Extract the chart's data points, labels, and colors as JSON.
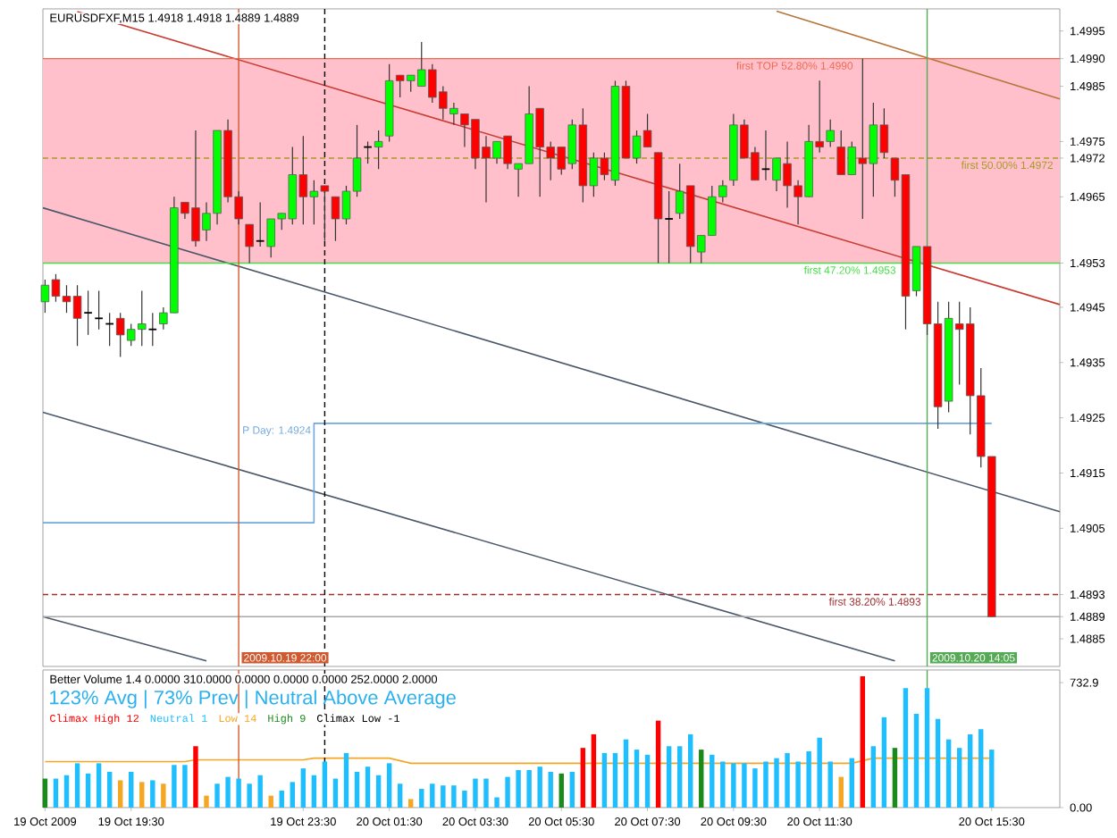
{
  "chart_data": [
    {
      "type": "candlestick",
      "title": "EURUSDFXF,M15 1.4918 1.4918 1.4889 1.4889",
      "x": [
        "2009-10-19T17:30",
        "2009-10-19T17:45",
        "2009-10-19T18:00",
        "2009-10-19T18:15",
        "2009-10-19T18:30",
        "2009-10-19T18:45",
        "2009-10-19T19:00",
        "2009-10-19T19:15",
        "2009-10-19T19:30",
        "2009-10-19T19:45",
        "2009-10-19T20:00",
        "2009-10-19T20:15",
        "2009-10-19T20:30",
        "2009-10-19T20:45",
        "2009-10-19T21:00",
        "2009-10-19T21:15",
        "2009-10-19T21:30",
        "2009-10-19T21:45",
        "2009-10-19T22:00",
        "2009-10-19T22:15",
        "2009-10-19T22:30",
        "2009-10-19T22:45",
        "2009-10-19T23:00",
        "2009-10-19T23:15",
        "2009-10-19T23:30",
        "2009-10-19T23:45",
        "2009-10-20T00:00",
        "2009-10-20T00:15",
        "2009-10-20T00:30",
        "2009-10-20T00:45",
        "2009-10-20T01:00",
        "2009-10-20T01:15",
        "2009-10-20T01:30",
        "2009-10-20T01:45",
        "2009-10-20T02:00",
        "2009-10-20T02:15",
        "2009-10-20T02:30",
        "2009-10-20T02:45",
        "2009-10-20T03:00",
        "2009-10-20T03:15",
        "2009-10-20T03:30",
        "2009-10-20T03:45",
        "2009-10-20T04:00",
        "2009-10-20T04:15",
        "2009-10-20T04:30",
        "2009-10-20T04:45",
        "2009-10-20T05:00",
        "2009-10-20T05:15",
        "2009-10-20T05:30",
        "2009-10-20T05:45",
        "2009-10-20T06:00",
        "2009-10-20T06:15",
        "2009-10-20T06:30",
        "2009-10-20T06:45",
        "2009-10-20T07:00",
        "2009-10-20T07:15",
        "2009-10-20T07:30",
        "2009-10-20T07:45",
        "2009-10-20T08:00",
        "2009-10-20T08:15",
        "2009-10-20T08:30",
        "2009-10-20T08:45",
        "2009-10-20T09:00",
        "2009-10-20T09:15",
        "2009-10-20T09:30",
        "2009-10-20T09:45",
        "2009-10-20T10:00",
        "2009-10-20T10:15",
        "2009-10-20T10:30",
        "2009-10-20T10:45",
        "2009-10-20T11:00",
        "2009-10-20T11:15",
        "2009-10-20T11:30",
        "2009-10-20T11:45",
        "2009-10-20T12:00",
        "2009-10-20T12:15",
        "2009-10-20T12:30",
        "2009-10-20T12:45",
        "2009-10-20T13:00",
        "2009-10-20T13:15",
        "2009-10-20T13:30",
        "2009-10-20T13:45",
        "2009-10-20T14:00",
        "2009-10-20T14:15",
        "2009-10-20T14:30",
        "2009-10-20T14:45",
        "2009-10-20T15:00",
        "2009-10-20T15:15",
        "2009-10-20T15:30"
      ],
      "ohlc": [
        [
          1.4946,
          1.495,
          1.4944,
          1.4949
        ],
        [
          1.495,
          1.4951,
          1.4946,
          1.4947
        ],
        [
          1.4947,
          1.4949,
          1.4944,
          1.4946
        ],
        [
          1.4947,
          1.4949,
          1.4938,
          1.4943
        ],
        [
          1.4944,
          1.4948,
          1.494,
          1.4944
        ],
        [
          1.4943,
          1.4948,
          1.4941,
          1.4943
        ],
        [
          1.4942,
          1.4944,
          1.4938,
          1.4942
        ],
        [
          1.4943,
          1.4944,
          1.4936,
          1.494
        ],
        [
          1.4939,
          1.4942,
          1.4938,
          1.4941
        ],
        [
          1.4941,
          1.4948,
          1.4938,
          1.4942
        ],
        [
          1.4941,
          1.4944,
          1.4938,
          1.4941
        ],
        [
          1.4942,
          1.4945,
          1.4941,
          1.4944
        ],
        [
          1.4944,
          1.4965,
          1.4944,
          1.4963
        ],
        [
          1.4964,
          1.4964,
          1.4961,
          1.4962
        ],
        [
          1.4963,
          1.4977,
          1.4956,
          1.4957
        ],
        [
          1.4959,
          1.4964,
          1.4957,
          1.4962
        ],
        [
          1.4962,
          1.4977,
          1.496,
          1.4977
        ],
        [
          1.4977,
          1.4979,
          1.4964,
          1.4965
        ],
        [
          1.4965,
          1.4966,
          1.496,
          1.4961
        ],
        [
          1.496,
          1.496,
          1.4953,
          1.4956
        ],
        [
          1.4957,
          1.4964,
          1.4956,
          1.4957
        ],
        [
          1.4956,
          1.4961,
          1.4954,
          1.4961
        ],
        [
          1.4961,
          1.4962,
          1.4959,
          1.4962
        ],
        [
          1.4961,
          1.4974,
          1.496,
          1.4969
        ],
        [
          1.4969,
          1.4976,
          1.496,
          1.4965
        ],
        [
          1.4965,
          1.4968,
          1.496,
          1.4966
        ],
        [
          1.4967,
          1.4967,
          1.4957,
          1.4966
        ],
        [
          1.4965,
          1.4965,
          1.4957,
          1.4961
        ],
        [
          1.4961,
          1.4967,
          1.496,
          1.4966
        ],
        [
          1.4966,
          1.4978,
          1.4965,
          1.4972
        ],
        [
          1.4974,
          1.4975,
          1.4971,
          1.4974
        ],
        [
          1.4974,
          1.4977,
          1.497,
          1.4975
        ],
        [
          1.4976,
          1.4989,
          1.4975,
          1.4986
        ],
        [
          1.4987,
          1.4987,
          1.4983,
          1.4986
        ],
        [
          1.4986,
          1.4987,
          1.4984,
          1.4987
        ],
        [
          1.4985,
          1.4993,
          1.4985,
          1.4988
        ],
        [
          1.4988,
          1.4989,
          1.4982,
          1.4983
        ],
        [
          1.4984,
          1.4985,
          1.4979,
          1.4981
        ],
        [
          1.498,
          1.4982,
          1.4978,
          1.4981
        ],
        [
          1.498,
          1.498,
          1.4974,
          1.4978
        ],
        [
          1.4979,
          1.4979,
          1.497,
          1.4972
        ],
        [
          1.4974,
          1.4976,
          1.4964,
          1.4972
        ],
        [
          1.4972,
          1.4975,
          1.4971,
          1.4975
        ],
        [
          1.4976,
          1.4976,
          1.497,
          1.4971
        ],
        [
          1.497,
          1.4971,
          1.4965,
          1.4971
        ],
        [
          1.4971,
          1.4985,
          1.4971,
          1.498
        ],
        [
          1.4981,
          1.4981,
          1.4965,
          1.4974
        ],
        [
          1.4974,
          1.4975,
          1.4968,
          1.4972
        ],
        [
          1.4974,
          1.4974,
          1.4969,
          1.497
        ],
        [
          1.4971,
          1.4979,
          1.497,
          1.4978
        ],
        [
          1.4978,
          1.4981,
          1.4964,
          1.4967
        ],
        [
          1.4967,
          1.4973,
          1.4965,
          1.4972
        ],
        [
          1.4972,
          1.4973,
          1.4968,
          1.4969
        ],
        [
          1.4968,
          1.4986,
          1.4967,
          1.4985
        ],
        [
          1.4985,
          1.4986,
          1.4972,
          1.4972
        ],
        [
          1.4972,
          1.4977,
          1.4971,
          1.4976
        ],
        [
          1.4977,
          1.498,
          1.4974,
          1.4974
        ],
        [
          1.4973,
          1.4973,
          1.4953,
          1.4961
        ],
        [
          1.4961,
          1.4966,
          1.4953,
          1.4961
        ],
        [
          1.4962,
          1.4971,
          1.4961,
          1.4966
        ],
        [
          1.4967,
          1.4967,
          1.4953,
          1.4956
        ],
        [
          1.4955,
          1.4958,
          1.4953,
          1.4958
        ],
        [
          1.4958,
          1.4967,
          1.4958,
          1.4965
        ],
        [
          1.4965,
          1.4968,
          1.4964,
          1.4967
        ],
        [
          1.4968,
          1.498,
          1.4967,
          1.4978
        ],
        [
          1.4978,
          1.4979,
          1.4972,
          1.4972
        ],
        [
          1.4973,
          1.4974,
          1.4968,
          1.4968
        ],
        [
          1.497,
          1.4977,
          1.4968,
          1.497
        ],
        [
          1.4968,
          1.4972,
          1.4966,
          1.4972
        ],
        [
          1.4971,
          1.4975,
          1.4963,
          1.4967
        ],
        [
          1.4967,
          1.4968,
          1.496,
          1.4965
        ],
        [
          1.4965,
          1.4978,
          1.4965,
          1.4975
        ],
        [
          1.4975,
          1.4986,
          1.4973,
          1.4974
        ],
        [
          1.4975,
          1.4979,
          1.4974,
          1.4977
        ],
        [
          1.4974,
          1.4977,
          1.4969,
          1.4969
        ],
        [
          1.4969,
          1.4975,
          1.4969,
          1.4974
        ],
        [
          1.4972,
          1.499,
          1.4961,
          1.4971
        ],
        [
          1.4971,
          1.4982,
          1.4965,
          1.4978
        ],
        [
          1.4978,
          1.4981,
          1.4972,
          1.4973
        ],
        [
          1.4972,
          1.4972,
          1.4965,
          1.4968
        ],
        [
          1.4969,
          1.4969,
          1.4941,
          1.4947
        ],
        [
          1.4948,
          1.4956,
          1.4947,
          1.4956
        ],
        [
          1.4956,
          1.4956,
          1.494,
          1.4942
        ],
        [
          1.4942,
          1.4946,
          1.4923,
          1.4927
        ],
        [
          1.4928,
          1.4946,
          1.4926,
          1.4943
        ],
        [
          1.4942,
          1.4946,
          1.4931,
          1.4941
        ],
        [
          1.4942,
          1.4945,
          1.4922,
          1.4929
        ],
        [
          1.4929,
          1.4934,
          1.4916,
          1.4918
        ],
        [
          1.4918,
          1.4918,
          1.4889,
          1.4889
        ]
      ],
      "colors": [
        "#00ff00",
        "#ff0000",
        "#ff0000",
        "#ff0000",
        "#000000",
        "#000000",
        "#000000",
        "#ff0000",
        "#00ff00",
        "#00ff00",
        "#000000",
        "#00ff00",
        "#00ff00",
        "#ff0000",
        "#ff0000",
        "#00ff00",
        "#00ff00",
        "#ff0000",
        "#ff0000",
        "#ff0000",
        "#000000",
        "#00ff00",
        "#00ff00",
        "#00ff00",
        "#ff0000",
        "#00ff00",
        "#ff0000",
        "#ff0000",
        "#00ff00",
        "#00ff00",
        "#000000",
        "#00ff00",
        "#00ff00",
        "#ff0000",
        "#00ff00",
        "#00ff00",
        "#ff0000",
        "#ff0000",
        "#00ff00",
        "#ff0000",
        "#ff0000",
        "#ff0000",
        "#00ff00",
        "#ff0000",
        "#00ff00",
        "#00ff00",
        "#ff0000",
        "#ff0000",
        "#ff0000",
        "#00ff00",
        "#ff0000",
        "#00ff00",
        "#ff0000",
        "#00ff00",
        "#ff0000",
        "#00ff00",
        "#ff0000",
        "#ff0000",
        "#000000",
        "#00ff00",
        "#ff0000",
        "#00ff00",
        "#00ff00",
        "#00ff00",
        "#00ff00",
        "#ff0000",
        "#ff0000",
        "#000000",
        "#00ff00",
        "#ff0000",
        "#ff0000",
        "#00ff00",
        "#ff0000",
        "#00ff00",
        "#ff0000",
        "#00ff00",
        "#ff0000",
        "#00ff00",
        "#ff0000",
        "#ff0000",
        "#ff0000",
        "#00ff00",
        "#ff0000",
        "#ff0000",
        "#00ff00",
        "#ff0000",
        "#ff0000",
        "#ff0000",
        "#ff0000"
      ],
      "series": [
        {
          "type": "line",
          "x": [
            "2009-10-19T18:15",
            "2009-10-20T17:05"
          ],
          "values": [
            1.49985,
            1.49455
          ],
          "color": "#c83c32"
        },
        {
          "type": "line",
          "x": [
            "2009-10-20T10:30",
            "2009-10-20T17:05"
          ],
          "values": [
            1.49986,
            1.49827
          ],
          "color": "#b8753a"
        },
        {
          "type": "line",
          "x": [
            "2009-10-19T17:27",
            "2009-10-20T17:05"
          ],
          "values": [
            1.4963,
            1.4908
          ],
          "color": "#4a5868"
        },
        {
          "type": "line",
          "x": [
            "2009-10-19T17:27",
            "2009-10-20T13:15"
          ],
          "values": [
            1.4926,
            1.4881
          ],
          "color": "#4a5868"
        },
        {
          "type": "line",
          "x": [
            "2009-10-19T17:27",
            "2009-10-19T21:15"
          ],
          "values": [
            1.4889,
            1.4881
          ],
          "color": "#4a5868"
        },
        {
          "type": "step",
          "name": "P Day: 1.4924",
          "x": [
            "2009-10-19T17:27",
            "2009-10-19T23:45",
            "2009-10-20T15:30"
          ],
          "values": [
            1.4906,
            1.4924,
            1.4924
          ],
          "color": "#6fa8dc"
        }
      ],
      "bands": [
        {
          "axis": "y",
          "from": 1.4953,
          "to": 1.499,
          "color": "#ffc0cb"
        }
      ],
      "ref_lines": [
        {
          "axis": "y",
          "value": 1.499,
          "label": "first TOP 52.80%  1.4990",
          "color": "#f06a50"
        },
        {
          "axis": "y",
          "value": 1.4972,
          "label": "first 50.00%  1.4972",
          "color": "#a89a28",
          "line_style": "dashed"
        },
        {
          "axis": "y",
          "value": 1.4953,
          "label": "first 47.20%  1.4953",
          "color": "#44dd44"
        },
        {
          "axis": "y",
          "value": 1.4893,
          "label": "first 38.20%  1.4893",
          "color": "#a03030",
          "line_style": "dashed"
        },
        {
          "axis": "y",
          "value": 1.4889,
          "color": "#a8a8a8"
        },
        {
          "axis": "x",
          "value": "2009-10-19T22:00",
          "label": "2009.10.19 22:00",
          "color": "#d05a30"
        },
        {
          "axis": "x",
          "value": "2009-10-20T00:00",
          "color": "#000000",
          "line_style": "dashed"
        },
        {
          "axis": "x",
          "value": "2009-10-20T14:00",
          "label": "2009.10.20 14:05",
          "color": "#55aa55"
        }
      ],
      "xlim": [
        "2009-10-19T17:27",
        "2009-10-20T17:05"
      ],
      "ylim": [
        1.488,
        1.4999
      ],
      "yticks": [
        {
          "value": 1.4885,
          "label": "1.4885"
        },
        {
          "value": 1.4889,
          "label": "1.4889"
        },
        {
          "value": 1.4893,
          "label": "1.4893"
        },
        {
          "value": 1.4905,
          "label": "1.4905"
        },
        {
          "value": 1.4915,
          "label": "1.4915"
        },
        {
          "value": 1.4925,
          "label": "1.4925"
        },
        {
          "value": 1.4935,
          "label": "1.4935"
        },
        {
          "value": 1.4945,
          "label": "1.4945"
        },
        {
          "value": 1.4953,
          "label": "1.4953"
        },
        {
          "value": 1.4965,
          "label": "1.4965"
        },
        {
          "value": 1.4972,
          "label": "1.4972"
        },
        {
          "value": 1.4975,
          "label": "1.4975"
        },
        {
          "value": 1.4985,
          "label": "1.4985"
        },
        {
          "value": 1.499,
          "label": "1.4990"
        },
        {
          "value": 1.4995,
          "label": "1.4995"
        }
      ],
      "tick_labels": "y"
    },
    {
      "type": "bar",
      "title": "Better Volume 1.4 0.0000 310.0000 0.0000 0.0000 0.0000 252.0000 2.0000",
      "subtitle": "123% Avg | 73% Prev | Neutral Above Average",
      "x": [
        "2009-10-19T17:30",
        "2009-10-19T17:45",
        "2009-10-19T18:00",
        "2009-10-19T18:15",
        "2009-10-19T18:30",
        "2009-10-19T18:45",
        "2009-10-19T19:00",
        "2009-10-19T19:15",
        "2009-10-19T19:30",
        "2009-10-19T19:45",
        "2009-10-19T20:00",
        "2009-10-19T20:15",
        "2009-10-19T20:30",
        "2009-10-19T20:45",
        "2009-10-19T21:00",
        "2009-10-19T21:15",
        "2009-10-19T21:30",
        "2009-10-19T21:45",
        "2009-10-19T22:00",
        "2009-10-19T22:15",
        "2009-10-19T22:30",
        "2009-10-19T22:45",
        "2009-10-19T23:00",
        "2009-10-19T23:15",
        "2009-10-19T23:30",
        "2009-10-19T23:45",
        "2009-10-20T00:00",
        "2009-10-20T00:15",
        "2009-10-20T00:30",
        "2009-10-20T00:45",
        "2009-10-20T01:00",
        "2009-10-20T01:15",
        "2009-10-20T01:30",
        "2009-10-20T01:45",
        "2009-10-20T02:00",
        "2009-10-20T02:15",
        "2009-10-20T02:30",
        "2009-10-20T02:45",
        "2009-10-20T03:00",
        "2009-10-20T03:15",
        "2009-10-20T03:30",
        "2009-10-20T03:45",
        "2009-10-20T04:00",
        "2009-10-20T04:15",
        "2009-10-20T04:30",
        "2009-10-20T04:45",
        "2009-10-20T05:00",
        "2009-10-20T05:15",
        "2009-10-20T05:30",
        "2009-10-20T05:45",
        "2009-10-20T06:00",
        "2009-10-20T06:15",
        "2009-10-20T06:30",
        "2009-10-20T06:45",
        "2009-10-20T07:00",
        "2009-10-20T07:15",
        "2009-10-20T07:30",
        "2009-10-20T07:45",
        "2009-10-20T08:00",
        "2009-10-20T08:15",
        "2009-10-20T08:30",
        "2009-10-20T08:45",
        "2009-10-20T09:00",
        "2009-10-20T09:15",
        "2009-10-20T09:30",
        "2009-10-20T09:45",
        "2009-10-20T10:00",
        "2009-10-20T10:15",
        "2009-10-20T10:30",
        "2009-10-20T10:45",
        "2009-10-20T11:00",
        "2009-10-20T11:15",
        "2009-10-20T11:30",
        "2009-10-20T11:45",
        "2009-10-20T12:00",
        "2009-10-20T12:15",
        "2009-10-20T12:30",
        "2009-10-20T12:45",
        "2009-10-20T13:00",
        "2009-10-20T13:15",
        "2009-10-20T13:30",
        "2009-10-20T13:45",
        "2009-10-20T14:00",
        "2009-10-20T14:15",
        "2009-10-20T14:30",
        "2009-10-20T14:45",
        "2009-10-20T15:00",
        "2009-10-20T15:15",
        "2009-10-20T15:30"
      ],
      "series": [
        {
          "name": "Climax High",
          "color": "#ff0000",
          "values": [
            null,
            null,
            null,
            null,
            null,
            null,
            null,
            null,
            null,
            null,
            null,
            null,
            null,
            null,
            360,
            null,
            null,
            null,
            null,
            null,
            null,
            null,
            null,
            null,
            null,
            null,
            null,
            null,
            null,
            null,
            null,
            null,
            null,
            null,
            null,
            null,
            null,
            null,
            null,
            null,
            null,
            null,
            null,
            null,
            null,
            null,
            null,
            null,
            null,
            null,
            350,
            430,
            null,
            null,
            null,
            null,
            null,
            510,
            null,
            null,
            null,
            null,
            null,
            null,
            null,
            null,
            null,
            null,
            null,
            null,
            null,
            null,
            null,
            null,
            null,
            null,
            770,
            null,
            null,
            null,
            null,
            null,
            null,
            null,
            null,
            null,
            null,
            null,
            null
          ]
        },
        {
          "name": "Neutral",
          "color": "#1ebeff",
          "values": [
            null,
            170,
            190,
            260,
            200,
            260,
            210,
            null,
            210,
            null,
            160,
            null,
            250,
            250,
            null,
            null,
            140,
            180,
            170,
            140,
            190,
            null,
            100,
            150,
            230,
            190,
            270,
            170,
            320,
            210,
            240,
            190,
            260,
            140,
            null,
            110,
            140,
            130,
            130,
            100,
            170,
            170,
            60,
            180,
            220,
            220,
            240,
            210,
            null,
            210,
            null,
            null,
            320,
            320,
            400,
            340,
            310,
            null,
            360,
            360,
            430,
            null,
            310,
            270,
            260,
            260,
            230,
            270,
            290,
            320,
            270,
            330,
            410,
            270,
            null,
            290,
            null,
            360,
            530,
            null,
            700,
            550,
            700,
            520,
            400,
            350,
            430,
            460,
            340
          ]
        },
        {
          "name": "Low",
          "color": "#f5a623",
          "values": [
            null,
            null,
            null,
            null,
            null,
            null,
            null,
            160,
            null,
            150,
            null,
            140,
            null,
            null,
            null,
            70,
            null,
            null,
            null,
            null,
            null,
            70,
            null,
            null,
            null,
            null,
            null,
            null,
            null,
            null,
            null,
            null,
            null,
            null,
            50,
            null,
            null,
            null,
            null,
            null,
            null,
            null,
            null,
            null,
            null,
            null,
            null,
            null,
            null,
            null,
            null,
            null,
            null,
            null,
            null,
            null,
            null,
            null,
            null,
            null,
            null,
            null,
            null,
            null,
            null,
            null,
            null,
            null,
            null,
            null,
            null,
            null,
            null,
            null,
            180,
            null,
            null,
            null,
            null,
            null,
            null,
            null,
            null,
            null,
            null,
            null,
            null,
            null,
            null
          ]
        },
        {
          "name": "High",
          "color": "#1a8a1a",
          "values": [
            170,
            null,
            null,
            null,
            null,
            null,
            null,
            null,
            null,
            null,
            null,
            null,
            null,
            null,
            null,
            null,
            null,
            null,
            null,
            null,
            null,
            null,
            null,
            null,
            null,
            null,
            null,
            null,
            null,
            null,
            null,
            null,
            null,
            null,
            null,
            null,
            null,
            null,
            null,
            null,
            null,
            null,
            null,
            null,
            null,
            null,
            null,
            null,
            200,
            null,
            null,
            null,
            null,
            null,
            null,
            null,
            null,
            null,
            null,
            null,
            null,
            340,
            null,
            null,
            null,
            null,
            null,
            null,
            null,
            null,
            null,
            null,
            null,
            null,
            null,
            null,
            null,
            null,
            null,
            350,
            null,
            null,
            null,
            null,
            null,
            null,
            null,
            null,
            null
          ]
        },
        {
          "name": "Climax Low",
          "color": "#000000",
          "values": [
            null,
            null,
            null,
            null,
            null,
            null,
            null,
            null,
            null,
            null,
            null,
            null,
            null,
            null,
            null,
            null,
            null,
            null,
            null,
            null,
            null,
            null,
            null,
            null,
            null,
            null,
            null,
            null,
            null,
            null,
            null,
            null,
            null,
            null,
            null,
            null,
            null,
            null,
            null,
            null,
            null,
            null,
            null,
            null,
            null,
            null,
            null,
            null,
            null,
            null,
            null,
            null,
            null,
            null,
            null,
            null,
            null,
            null,
            null,
            null,
            null,
            null,
            null,
            null,
            null,
            null,
            null,
            null,
            null,
            null,
            null,
            null,
            null,
            null,
            null,
            null,
            null,
            null,
            null,
            null,
            null,
            null,
            null,
            null,
            null,
            null,
            null,
            null,
            null
          ]
        },
        {
          "type": "line",
          "color": "#f5a623",
          "x": [
            "2009-10-19T17:30",
            "2009-10-19T20:45",
            "2009-10-19T21:00",
            "2009-10-19T23:30",
            "2009-10-19T23:45",
            "2009-10-20T01:30",
            "2009-10-20T02:00",
            "2009-10-20T12:15",
            "2009-10-20T12:45",
            "2009-10-20T15:30"
          ],
          "values": [
            270,
            270,
            280,
            280,
            290,
            290,
            260,
            260,
            290,
            290
          ]
        }
      ],
      "annotations": [
        "12",
        "1",
        "14",
        "9",
        "-1"
      ],
      "ref_lines": [
        {
          "axis": "x",
          "value": "2009-10-19T22:00",
          "color": "#d05a30"
        },
        {
          "axis": "x",
          "value": "2009-10-20T00:00",
          "color": "#000000",
          "line_style": "dashed"
        },
        {
          "axis": "x",
          "value": "2009-10-20T14:00",
          "color": "#55aa55"
        }
      ],
      "legend": "top left",
      "xlim": [
        "2009-10-19T17:27",
        "2009-10-20T17:05"
      ],
      "ylim": [
        0,
        807
      ],
      "xticks": [
        {
          "value": "2009-10-19T17:30",
          "label": "19 Oct 2009"
        },
        {
          "value": "2009-10-19T19:30",
          "label": "19 Oct 19:30"
        },
        {
          "value": "2009-10-19T23:30",
          "label": "19 Oct 23:30"
        },
        {
          "value": "2009-10-20T01:30",
          "label": "20 Oct 01:30"
        },
        {
          "value": "2009-10-20T03:30",
          "label": "20 Oct 03:30"
        },
        {
          "value": "2009-10-20T05:30",
          "label": "20 Oct 05:30"
        },
        {
          "value": "2009-10-20T07:30",
          "label": "20 Oct 07:30"
        },
        {
          "value": "2009-10-20T09:30",
          "label": "20 Oct 09:30"
        },
        {
          "value": "2009-10-20T11:30",
          "label": "20 Oct 11:30"
        },
        {
          "value": "2009-10-20T15:30",
          "label": "20 Oct 15:30"
        }
      ],
      "yticks": [
        {
          "value": 0,
          "label": "0.00"
        },
        {
          "value": 732.9,
          "label": "732.9"
        }
      ]
    }
  ]
}
